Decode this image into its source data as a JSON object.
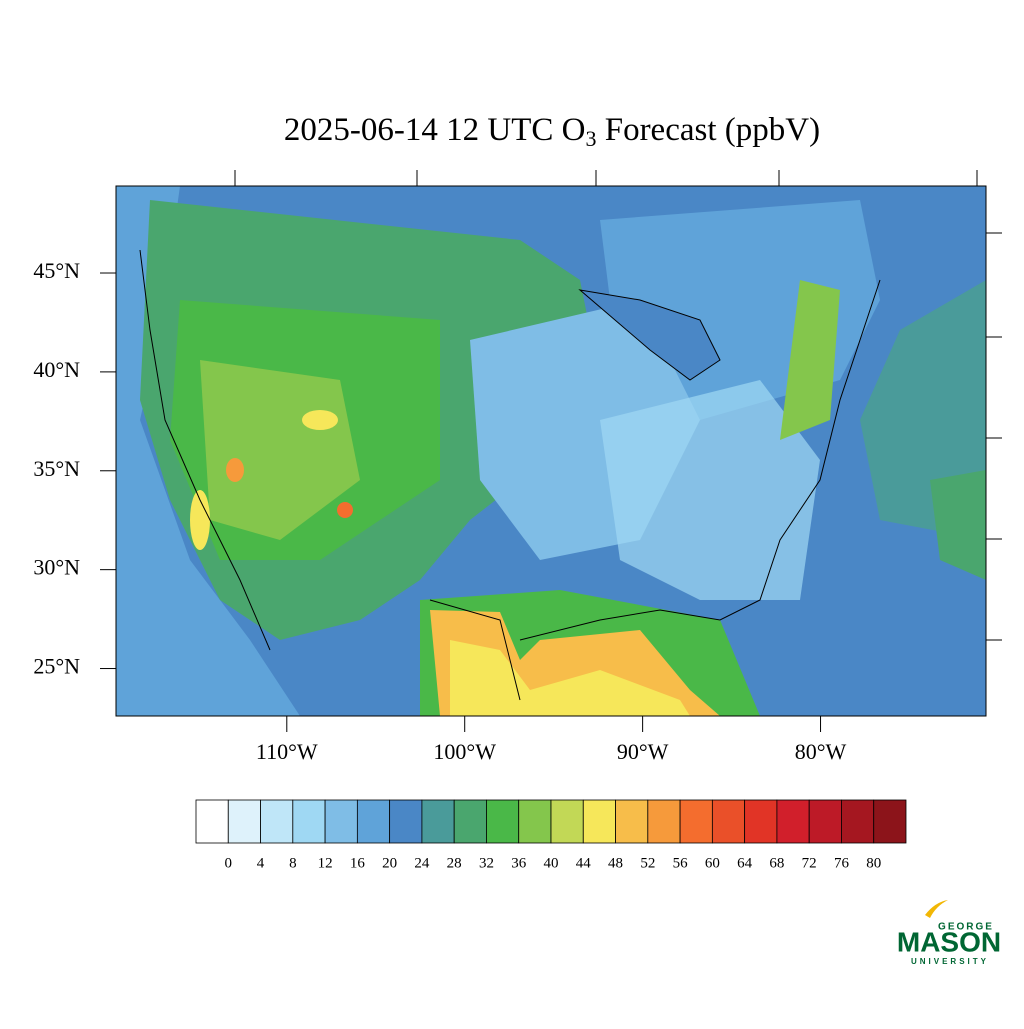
{
  "title": {
    "text": "2025-06-14 12 UTC O",
    "subscript": "3",
    "suffix": " Forecast (ppbV)"
  },
  "map": {
    "lon_range": [
      -119.6,
      -70.7
    ],
    "lat_range": [
      22.6,
      49.4
    ],
    "lon_ticks": [
      {
        "value": -110,
        "label": "110°W"
      },
      {
        "value": -100,
        "label": "100°W"
      },
      {
        "value": -90,
        "label": "90°W"
      },
      {
        "value": -80,
        "label": "80°W"
      }
    ],
    "lat_ticks": [
      {
        "value": 45,
        "label": "45°N"
      },
      {
        "value": 40,
        "label": "40°N"
      },
      {
        "value": 35,
        "label": "35°N"
      },
      {
        "value": 30,
        "label": "30°N"
      },
      {
        "value": 25,
        "label": "25°N"
      }
    ]
  },
  "colorbar": {
    "levels": [
      0,
      4,
      8,
      12,
      16,
      20,
      24,
      28,
      32,
      36,
      40,
      44,
      48,
      52,
      56,
      60,
      64,
      68,
      72,
      76,
      80
    ],
    "colors": [
      "#ffffff",
      "#def2fb",
      "#bfe6f8",
      "#9fd8f3",
      "#7fbde6",
      "#5fa3d9",
      "#4a87c6",
      "#4a9b9a",
      "#4aa66e",
      "#4ab848",
      "#84c64c",
      "#c2d856",
      "#f6e75a",
      "#f7bd4a",
      "#f69a3b",
      "#f46d2e",
      "#ea5029",
      "#e13426",
      "#d11f2b",
      "#bd1a27",
      "#a51720",
      "#8c141a"
    ]
  },
  "logo": {
    "top": "GEORGE",
    "main": "MASON",
    "bottom": "UNIVERSITY"
  }
}
